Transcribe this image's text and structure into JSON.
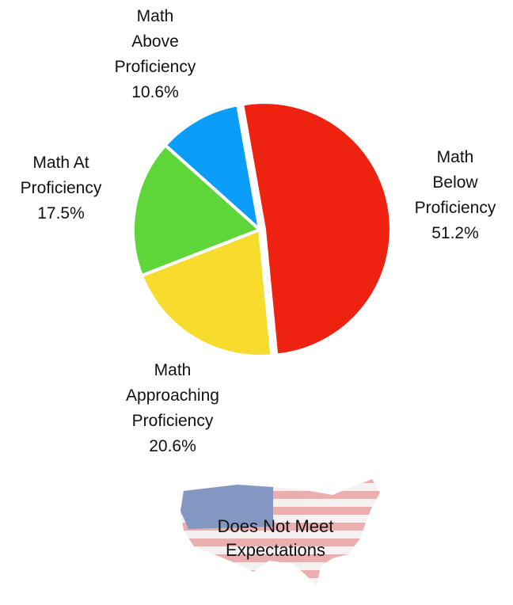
{
  "chart_data": {
    "type": "pie",
    "categories": [
      "Math Below Proficiency",
      "Math Approaching Proficiency",
      "Math At Proficiency",
      "Math Above Proficiency"
    ],
    "values": [
      51.2,
      20.6,
      17.5,
      10.6
    ],
    "value_labels": [
      "51.2%",
      "20.6%",
      "17.5%",
      "10.6%"
    ],
    "colors": [
      "#ee2211",
      "#f7dc2e",
      "#5ed63a",
      "#0a9dfa"
    ],
    "annotation": "Does Not Meet Expectations"
  }
}
